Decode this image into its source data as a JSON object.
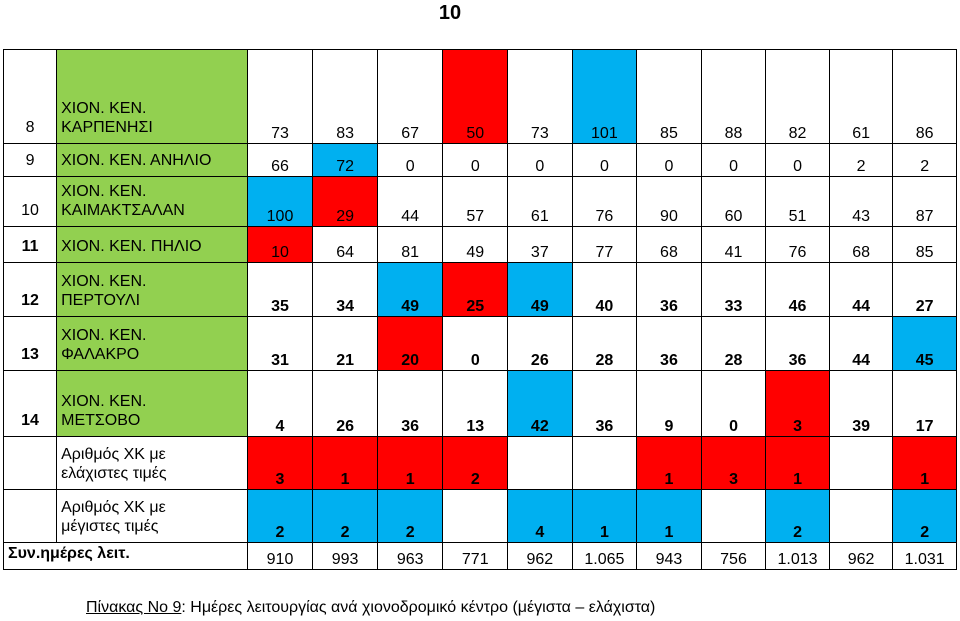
{
  "page_number": "10",
  "rows": [
    {
      "num": "8",
      "name": [
        "ΧΙΟΝ. ΚΕΝ.",
        "ΚΑΡΠΕΝΗΣΙ"
      ],
      "values": [
        "73",
        "83",
        "67",
        "50",
        "73",
        "101",
        "85",
        "88",
        "82",
        "61",
        "86"
      ],
      "colors": [
        "",
        "",
        "",
        "red",
        "",
        "blue",
        "",
        "",
        "",
        "",
        ""
      ]
    },
    {
      "num": "9",
      "name": [
        "ΧΙΟΝ. ΚΕΝ. ΑΝΗΛΙΟ"
      ],
      "values": [
        "66",
        "72",
        "0",
        "0",
        "0",
        "0",
        "0",
        "0",
        "0",
        "2",
        "2"
      ],
      "colors": [
        "",
        "blue",
        "",
        "",
        "",
        "",
        "",
        "",
        "",
        "",
        ""
      ]
    },
    {
      "num": "10",
      "name": [
        "ΧΙΟΝ. ΚΕΝ.",
        "ΚΑΙΜΑΚΤΣΑΛΑΝ"
      ],
      "values": [
        "100",
        "29",
        "44",
        "57",
        "61",
        "76",
        "90",
        "60",
        "51",
        "43",
        "87"
      ],
      "colors": [
        "blue",
        "red",
        "",
        "",
        "",
        "",
        "",
        "",
        "",
        "",
        ""
      ]
    },
    {
      "num": "11",
      "name": [
        "ΧΙΟΝ. ΚΕΝ. ΠΗΛΙΟ"
      ],
      "values": [
        "10",
        "64",
        "81",
        "49",
        "37",
        "77",
        "68",
        "41",
        "76",
        "68",
        "85"
      ],
      "colors": [
        "red",
        "",
        "",
        "",
        "",
        "",
        "",
        "",
        "",
        "",
        ""
      ]
    },
    {
      "num": "12",
      "name": [
        "ΧΙΟΝ. ΚΕΝ.",
        "ΠΕΡΤΟΥΛΙ"
      ],
      "values": [
        "35",
        "34",
        "49",
        "25",
        "49",
        "40",
        "36",
        "33",
        "46",
        "44",
        "27"
      ],
      "colors": [
        "",
        "",
        "blue",
        "red",
        "blue",
        "",
        "",
        "",
        "",
        "",
        ""
      ]
    },
    {
      "num": "13",
      "name": [
        "ΧΙΟΝ. ΚΕΝ.",
        "ΦΑΛΑΚΡΟ"
      ],
      "values": [
        "31",
        "21",
        "20",
        "0",
        "26",
        "28",
        "36",
        "28",
        "36",
        "44",
        "45"
      ],
      "colors": [
        "",
        "",
        "red",
        "",
        "",
        "",
        "",
        "",
        "",
        "",
        "blue"
      ]
    },
    {
      "num": "14",
      "name": [
        "ΧΙΟΝ. ΚΕΝ.",
        "ΜΕΤΣΟΒΟ"
      ],
      "values": [
        "4",
        "26",
        "36",
        "13",
        "42",
        "36",
        "9",
        "0",
        "3",
        "39",
        "17"
      ],
      "colors": [
        "",
        "",
        "",
        "",
        "blue",
        "",
        "",
        "",
        "red",
        "",
        ""
      ]
    }
  ],
  "min_row": {
    "label": [
      "Αριθμός ΧΚ με",
      "ελάχιστες τιμές"
    ],
    "values": [
      "3",
      "1",
      "1",
      "2",
      "",
      "",
      "1",
      "3",
      "1",
      "",
      "1"
    ],
    "colors": [
      "red",
      "red",
      "red",
      "red",
      "",
      "",
      "red",
      "red",
      "red",
      "",
      "red"
    ]
  },
  "max_row": {
    "label": [
      "Αριθμός ΧΚ με",
      "μέγιστες τιμές"
    ],
    "values": [
      "2",
      "2",
      "2",
      "",
      "4",
      "1",
      "1",
      "",
      "2",
      "",
      "2"
    ],
    "colors": [
      "blue",
      "blue",
      "blue",
      "",
      "blue",
      "blue",
      "blue",
      "",
      "blue",
      "",
      "blue"
    ]
  },
  "total_row": {
    "label": "Συν.ημέρες λειτ.",
    "values": [
      "910",
      "993",
      "963",
      "771",
      "962",
      "1.065",
      "943",
      "756",
      "1.013",
      "962",
      "1.031"
    ]
  },
  "caption": {
    "prefix": "Πίνακας Νο 9",
    "rest": ": Ημέρες λειτουργίας ανά χιονοδρομικό κέντρο (μέγιστα – ελάχιστα)"
  },
  "colors": {
    "green": "#92d050",
    "red": "#ff0000",
    "blue": "#00b0f0"
  }
}
